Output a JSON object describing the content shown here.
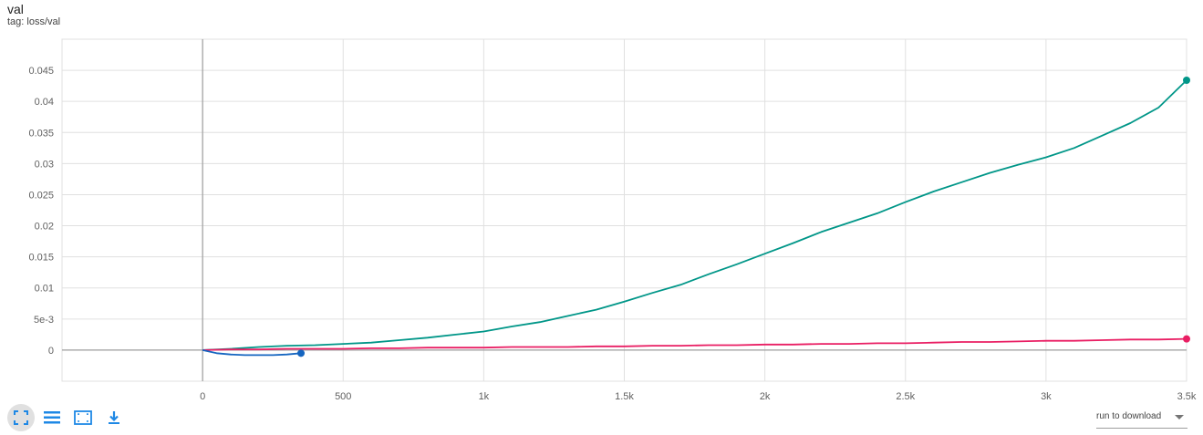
{
  "header": {
    "title": "val",
    "tag": "tag: loss/val"
  },
  "chart_data": {
    "type": "line",
    "xlim": [
      -500,
      3500
    ],
    "ylim": [
      -0.005,
      0.05
    ],
    "x_ticks": [
      {
        "value": 0,
        "label": "0"
      },
      {
        "value": 500,
        "label": "500"
      },
      {
        "value": 1000,
        "label": "1k"
      },
      {
        "value": 1500,
        "label": "1.5k"
      },
      {
        "value": 2000,
        "label": "2k"
      },
      {
        "value": 2500,
        "label": "2.5k"
      },
      {
        "value": 3000,
        "label": "3k"
      },
      {
        "value": 3500,
        "label": "3.5k"
      }
    ],
    "y_ticks": [
      {
        "value": 0,
        "label": "0"
      },
      {
        "value": 0.005,
        "label": "5e-3"
      },
      {
        "value": 0.01,
        "label": "0.01"
      },
      {
        "value": 0.015,
        "label": "0.015"
      },
      {
        "value": 0.02,
        "label": "0.02"
      },
      {
        "value": 0.025,
        "label": "0.025"
      },
      {
        "value": 0.03,
        "label": "0.03"
      },
      {
        "value": 0.035,
        "label": "0.035"
      },
      {
        "value": 0.04,
        "label": "0.04"
      },
      {
        "value": 0.045,
        "label": "0.045"
      }
    ],
    "grid": true,
    "series": [
      {
        "color": "#009688",
        "x": [
          0,
          100,
          200,
          300,
          400,
          500,
          600,
          700,
          800,
          900,
          1000,
          1100,
          1200,
          1300,
          1400,
          1500,
          1600,
          1700,
          1800,
          1900,
          2000,
          2100,
          2200,
          2300,
          2400,
          2500,
          2600,
          2700,
          2800,
          2900,
          3000,
          3100,
          3200,
          3300,
          3400,
          3500
        ],
        "y": [
          0,
          0.0002,
          0.0005,
          0.0007,
          0.0008,
          0.001,
          0.0012,
          0.0016,
          0.002,
          0.0025,
          0.003,
          0.0038,
          0.0045,
          0.0055,
          0.0065,
          0.0078,
          0.0092,
          0.0105,
          0.0122,
          0.0138,
          0.0155,
          0.0172,
          0.019,
          0.0205,
          0.022,
          0.0238,
          0.0255,
          0.027,
          0.0285,
          0.0298,
          0.031,
          0.0325,
          0.0345,
          0.0365,
          0.039,
          0.0434
        ]
      },
      {
        "color": "#e91e63",
        "x": [
          0,
          100,
          200,
          300,
          400,
          500,
          600,
          700,
          800,
          900,
          1000,
          1100,
          1200,
          1300,
          1400,
          1500,
          1600,
          1700,
          1800,
          1900,
          2000,
          2100,
          2200,
          2300,
          2400,
          2500,
          2600,
          2700,
          2800,
          2900,
          3000,
          3100,
          3200,
          3300,
          3400,
          3500
        ],
        "y": [
          0,
          0.0001,
          0.0001,
          0.0002,
          0.0002,
          0.0002,
          0.0003,
          0.0003,
          0.0004,
          0.0004,
          0.0004,
          0.0005,
          0.0005,
          0.0005,
          0.0006,
          0.0006,
          0.0007,
          0.0007,
          0.0008,
          0.0008,
          0.0009,
          0.0009,
          0.001,
          0.001,
          0.0011,
          0.0011,
          0.0012,
          0.0013,
          0.0013,
          0.0014,
          0.0015,
          0.0015,
          0.0016,
          0.0017,
          0.0017,
          0.0018
        ]
      },
      {
        "color": "#1565c0",
        "x": [
          0,
          20,
          50,
          100,
          150,
          200,
          250,
          300,
          350
        ],
        "y": [
          0,
          -0.0002,
          -0.0005,
          -0.0007,
          -0.0008,
          -0.0008,
          -0.0008,
          -0.0007,
          -0.0005
        ]
      }
    ]
  },
  "toolbar": {
    "icons": [
      "fullscreen-icon",
      "list-icon",
      "fit-domain-icon",
      "download-icon"
    ]
  },
  "download_select": {
    "label": "run to download"
  }
}
